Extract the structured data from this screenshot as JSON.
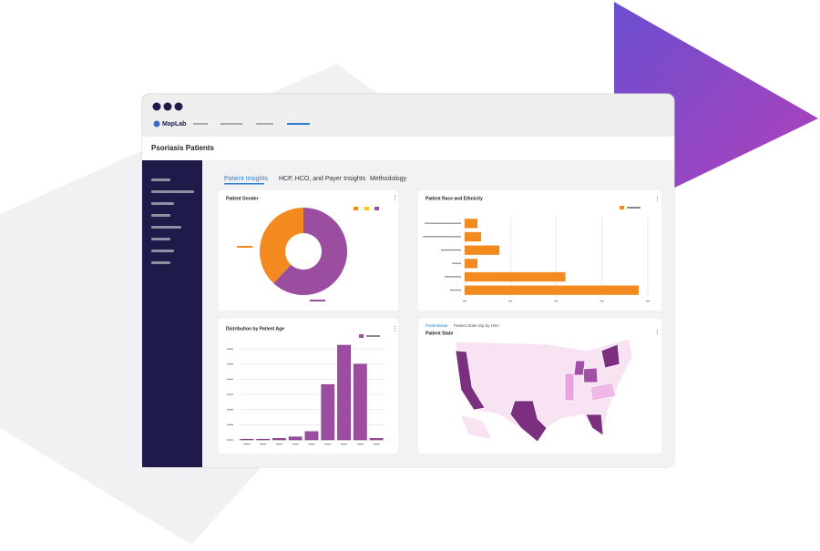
{
  "header": {
    "brand": "MapLab",
    "title": "Psoriasis Patients"
  },
  "tabs": [
    "Patient Insights",
    "HCP, HCO, and Payer Insights",
    "Methodology"
  ],
  "cards": {
    "gender": {
      "title": "Patient Gender",
      "type": "pie",
      "values": [
        62,
        38
      ],
      "colors": [
        "#9b4ea0",
        "#f28a20"
      ]
    },
    "race": {
      "title": "Patient Race and Ethnicity",
      "type": "bar",
      "values": [
        7,
        9,
        19,
        7,
        55,
        95
      ],
      "color": "#f28a20",
      "xlim": [
        0,
        100
      ],
      "xticks": [
        0,
        25,
        50,
        75,
        100
      ],
      "grid": true
    },
    "age": {
      "title": "Distribution by Patient Age",
      "type": "bar",
      "values": [
        1,
        1,
        2,
        4,
        11,
        73,
        125,
        100,
        2
      ],
      "color": "#9b4ea0",
      "ylim": [
        0,
        125
      ],
      "yticks": [
        0,
        20,
        40,
        60,
        80,
        100,
        120
      ],
      "grid": true
    },
    "state": {
      "tabs": [
        "PatientState",
        "Patient State-Zip by HSC"
      ],
      "title": "Patient State"
    }
  }
}
